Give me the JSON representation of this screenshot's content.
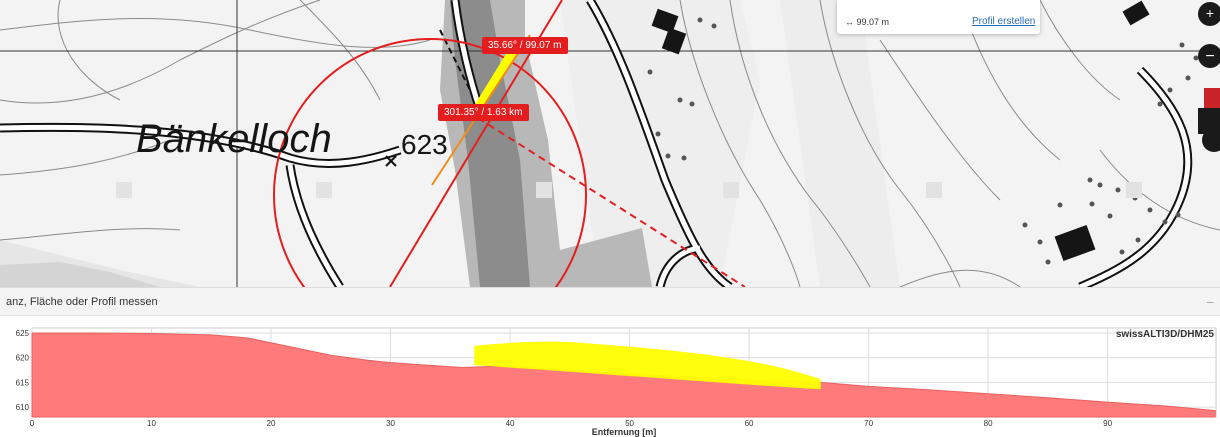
{
  "map": {
    "place_name": "Bänkelloch",
    "spot_height": "623",
    "measure_tag_1": "35.66° / 99.07 m",
    "measure_tag_2": "301.35° / 1.63 km",
    "popup": {
      "distance": "99.07 m",
      "link_label": "Profil erstellen"
    },
    "zoom_in_symbol": "+",
    "zoom_out_symbol": "−",
    "colors": {
      "measure": "#e41e1e",
      "highlight": "#ffff00",
      "orange": "#f08c1a"
    }
  },
  "panel": {
    "title": "anz, Fläche oder Profil messen",
    "minimize_symbol": "−"
  },
  "chart_data": {
    "type": "area",
    "legend": "swissALTI3D/DHM25",
    "xlabel": "Entfernung [m]",
    "ylabel": "",
    "xlim": [
      0,
      99.07
    ],
    "ylim": [
      608,
      626
    ],
    "x_ticks": [
      0,
      10,
      20,
      30,
      40,
      50,
      60,
      70,
      80,
      90
    ],
    "y_ticks": [
      610,
      615,
      620,
      625
    ],
    "series": [
      {
        "x": [
          0,
          5,
          10,
          15,
          18,
          22,
          25,
          28,
          30,
          33,
          36,
          38,
          40,
          44,
          48,
          52,
          56,
          60,
          64,
          67,
          70,
          75,
          80,
          85,
          90,
          95,
          99
        ],
        "y": [
          625,
          625,
          624.9,
          624.6,
          624,
          622,
          620.5,
          619.5,
          619,
          618.5,
          618,
          618.2,
          618.3,
          617.5,
          617,
          616.5,
          616,
          615.5,
          615.3,
          614.8,
          614.2,
          613.5,
          612.7,
          611.9,
          611,
          610.2,
          609.3
        ]
      }
    ],
    "annotation": {
      "type": "highlight",
      "x_range": [
        37,
        66
      ],
      "y_range": [
        613.6,
        622.8
      ]
    }
  }
}
